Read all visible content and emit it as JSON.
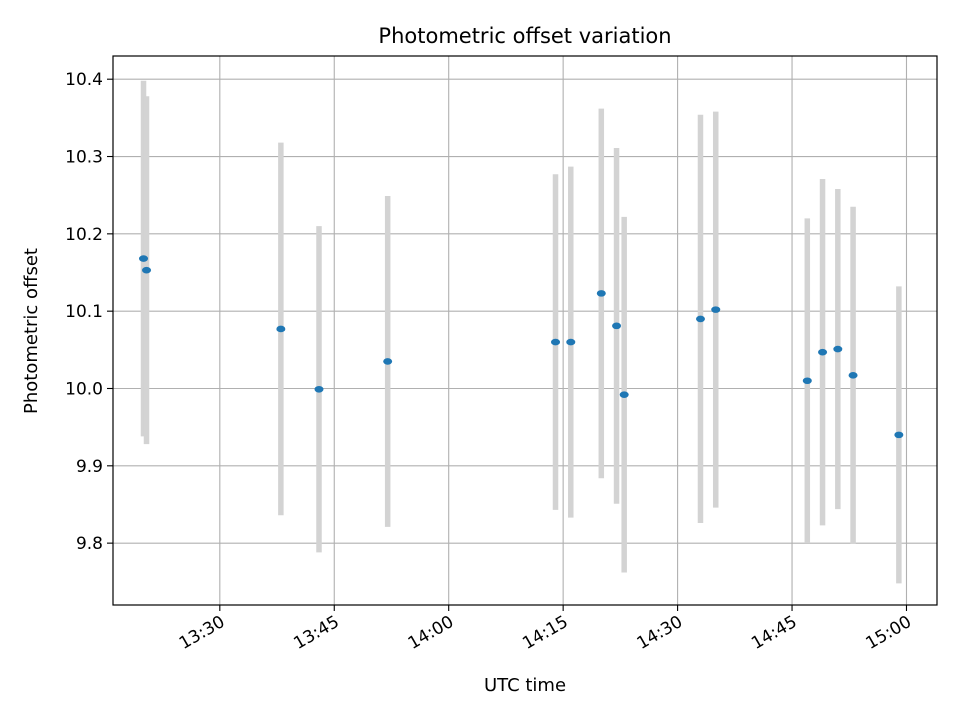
{
  "chart_data": {
    "type": "scatter",
    "title": "Photometric offset variation",
    "xlabel": "UTC time",
    "ylabel": "Photometric offset",
    "x_ticks": [
      "13:30",
      "13:45",
      "14:00",
      "14:15",
      "14:30",
      "14:45",
      "15:00"
    ],
    "y_ticks": [
      "9.8",
      "9.9",
      "10.0",
      "10.1",
      "10.2",
      "10.3",
      "10.4"
    ],
    "xlim": [
      "13:16",
      "15:04"
    ],
    "ylim": [
      9.72,
      10.43
    ],
    "grid": true,
    "marker_color": "#1f77b4",
    "errorbar_color": "#d3d3d3",
    "points": [
      {
        "time": "13:20",
        "y": 10.168,
        "err": 0.23
      },
      {
        "time": "13:20",
        "y": 10.153,
        "err": 0.225
      },
      {
        "time": "13:38",
        "y": 10.077,
        "err": 0.241
      },
      {
        "time": "13:43",
        "y": 9.999,
        "err": 0.211
      },
      {
        "time": "13:52",
        "y": 10.035,
        "err": 0.214
      },
      {
        "time": "14:14",
        "y": 10.06,
        "err": 0.217
      },
      {
        "time": "14:16",
        "y": 10.06,
        "err": 0.227
      },
      {
        "time": "14:20",
        "y": 10.123,
        "err": 0.239
      },
      {
        "time": "14:22",
        "y": 10.081,
        "err": 0.23
      },
      {
        "time": "14:23",
        "y": 9.992,
        "err": 0.23
      },
      {
        "time": "14:33",
        "y": 10.09,
        "err": 0.264
      },
      {
        "time": "14:35",
        "y": 10.102,
        "err": 0.256
      },
      {
        "time": "14:47",
        "y": 10.01,
        "err": 0.21
      },
      {
        "time": "14:49",
        "y": 10.047,
        "err": 0.224
      },
      {
        "time": "14:51",
        "y": 10.051,
        "err": 0.207
      },
      {
        "time": "14:53",
        "y": 10.017,
        "err": 0.218
      },
      {
        "time": "14:59",
        "y": 9.94,
        "err": 0.192
      }
    ]
  }
}
